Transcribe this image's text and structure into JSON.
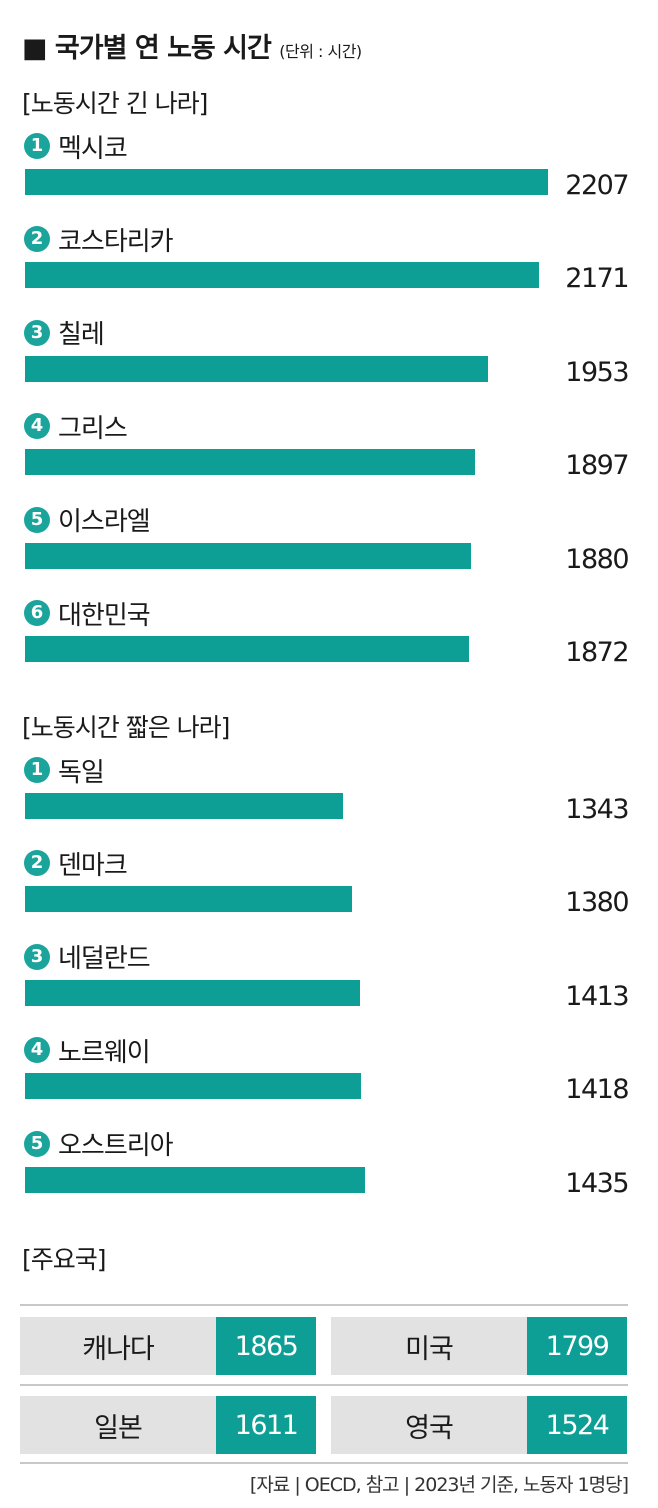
{
  "title": "국가별 연 노동 시간",
  "unit": "(단위 : 시간)",
  "chart_data": {
    "type": "bar",
    "groups": [
      {
        "heading": "[노동시간 긴  나라]",
        "items": [
          {
            "rank": "1",
            "name": "멕시코",
            "value": 2207
          },
          {
            "rank": "2",
            "name": "코스타리카",
            "value": 2171
          },
          {
            "rank": "3",
            "name": "칠레",
            "value": 1953
          },
          {
            "rank": "4",
            "name": "그리스",
            "value": 1897
          },
          {
            "rank": "5",
            "name": "이스라엘",
            "value": 1880
          },
          {
            "rank": "6",
            "name": "대한민국",
            "value": 1872
          }
        ]
      },
      {
        "heading": "[노동시간 짧은 나라]",
        "items": [
          {
            "rank": "1",
            "name": "독일",
            "value": 1343
          },
          {
            "rank": "2",
            "name": "덴마크",
            "value": 1380
          },
          {
            "rank": "3",
            "name": "네덜란드",
            "value": 1413
          },
          {
            "rank": "4",
            "name": "노르웨이",
            "value": 1418
          },
          {
            "rank": "5",
            "name": "오스트리아",
            "value": 1435
          }
        ]
      }
    ],
    "table": {
      "heading": "[주요국]",
      "rows": [
        [
          {
            "name": "캐나다",
            "value": "1865"
          },
          {
            "name": "미국",
            "value": "1799"
          }
        ],
        [
          {
            "name": "일본",
            "value": "1611"
          },
          {
            "name": "영국",
            "value": "1524"
          }
        ]
      ]
    }
  },
  "source": "[자료 | OECD, 참고 | 2023년 기준, 노동자 1명당]",
  "colors": {
    "bar": "#0d9e96",
    "rank_badge": "#1aa49c",
    "table_name_bg": "#e2e2e2"
  }
}
